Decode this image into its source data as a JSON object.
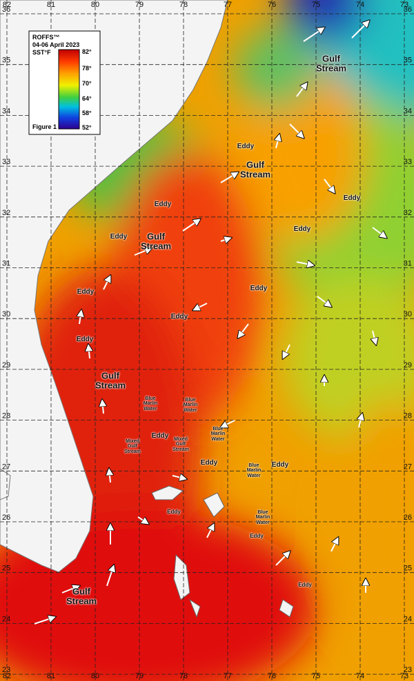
{
  "legend": {
    "brand": "ROFFS™",
    "date": "04-06 April 2023",
    "unit": "SST°F",
    "scale": [
      "82°",
      "78°",
      "70°",
      "64°",
      "58°",
      "52°"
    ],
    "figure": "Figure 1"
  },
  "lat_labels": [
    "36",
    "35",
    "34",
    "33",
    "32",
    "31",
    "30",
    "29",
    "28",
    "27",
    "26",
    "25",
    "24",
    "23"
  ],
  "lon_labels": [
    "82",
    "81",
    "80",
    "79",
    "78",
    "77",
    "76",
    "75",
    "74",
    "73"
  ],
  "annotations": [
    "Gulf Stream",
    "Eddy",
    "Gulf Stream",
    "Eddy",
    "Eddy",
    "Eddy",
    "Eddy",
    "Gulf Stream",
    "Eddy",
    "Eddy",
    "Eddy",
    "Eddy",
    "Gulf Stream",
    "Blue Marlin Water",
    "Blue Marlin Water",
    "Blue Marlin Water",
    "Eddy",
    "Mixed Gulf Stream",
    "Mixed Gulf Stream",
    "Eddy",
    "Eddy",
    "Blue Marlin Water",
    "Blue Marlin Water",
    "Eddy",
    "Eddy",
    "Eddy",
    "Gulf Stream"
  ]
}
